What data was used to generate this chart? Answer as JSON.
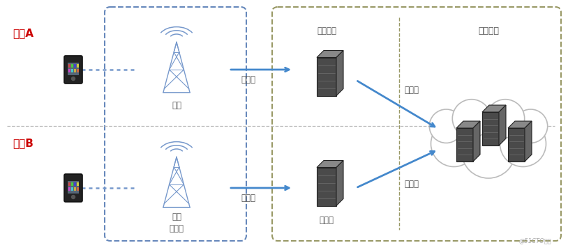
{
  "bg_color": "#ffffff",
  "city_a_label": "城市A",
  "city_b_label": "城市B",
  "access_net_label": "接入网",
  "base_station_label": "基站",
  "carrier_net_label": "承载网",
  "telecom_room_label": "电信机房",
  "core_net_label": "核心网",
  "backbone_net_label": "骨干网络",
  "watermark": "@51CTO博客",
  "box1_color": "#6688bb",
  "box2_color": "#999966",
  "arrow_color": "#4488cc",
  "dotted_color": "#7799cc",
  "divider_color": "#aaaaaa",
  "text_color": "#555555",
  "city_color": "#cc0000"
}
